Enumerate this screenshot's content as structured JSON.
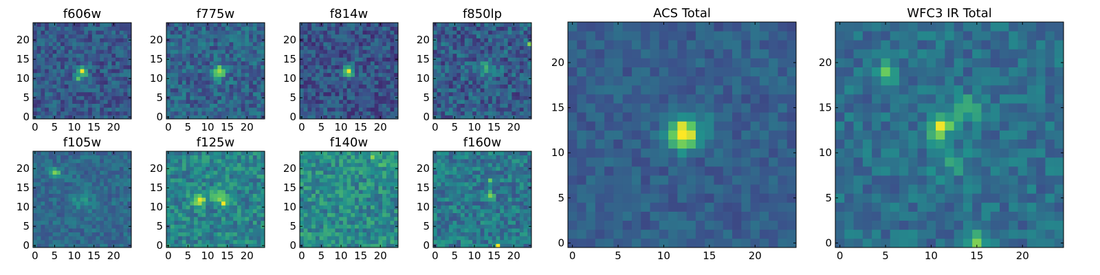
{
  "figure": {
    "colormap": "viridis",
    "colormap_stops": [
      "#440154",
      "#3b528b",
      "#21918c",
      "#5ec962",
      "#fde725"
    ],
    "frame_color": "#000000",
    "background": "#ffffff"
  },
  "chart_data": [
    {
      "type": "heatmap",
      "title": "f606w",
      "grid": false,
      "x_ticks": [
        0,
        5,
        10,
        15,
        20
      ],
      "y_ticks": [
        0,
        5,
        10,
        15,
        20
      ],
      "xlim": [
        -0.5,
        24.5
      ],
      "ylim": [
        -0.5,
        24.5
      ],
      "grid_size": 25,
      "background_level": 0.28,
      "noise": 0.13,
      "features": [
        {
          "x": 12,
          "y": 12,
          "amplitude": 0.72,
          "sigma": 0.9
        },
        {
          "x": 11,
          "y": 10,
          "amplitude": 0.35,
          "sigma": 0.7
        }
      ]
    },
    {
      "type": "heatmap",
      "title": "f775w",
      "grid": false,
      "x_ticks": [
        0,
        5,
        10,
        15,
        20
      ],
      "y_ticks": [
        0,
        5,
        10,
        15,
        20
      ],
      "xlim": [
        -0.5,
        24.5
      ],
      "ylim": [
        -0.5,
        24.5
      ],
      "grid_size": 25,
      "background_level": 0.32,
      "noise": 0.14,
      "features": [
        {
          "x": 13,
          "y": 12,
          "amplitude": 0.65,
          "sigma": 1.0
        },
        {
          "x": 12,
          "y": 10,
          "amplitude": 0.3,
          "sigma": 0.8
        }
      ]
    },
    {
      "type": "heatmap",
      "title": "f814w",
      "grid": false,
      "x_ticks": [
        0,
        5,
        10,
        15,
        20
      ],
      "y_ticks": [
        0,
        5,
        10,
        15,
        20
      ],
      "xlim": [
        -0.5,
        24.5
      ],
      "ylim": [
        -0.5,
        24.5
      ],
      "grid_size": 25,
      "background_level": 0.26,
      "noise": 0.14,
      "features": [
        {
          "x": 12,
          "y": 12,
          "amplitude": 0.7,
          "sigma": 0.9
        }
      ]
    },
    {
      "type": "heatmap",
      "title": "f850lp",
      "grid": false,
      "x_ticks": [
        0,
        5,
        10,
        15,
        20
      ],
      "y_ticks": [
        0,
        5,
        10,
        15,
        20
      ],
      "xlim": [
        -0.5,
        24.5
      ],
      "ylim": [
        -0.5,
        24.5
      ],
      "grid_size": 25,
      "background_level": 0.3,
      "noise": 0.16,
      "features": [
        {
          "x": 24,
          "y": 19,
          "amplitude": 0.65,
          "sigma": 0.5
        },
        {
          "x": 13,
          "y": 13,
          "amplitude": 0.2,
          "sigma": 1.5
        }
      ]
    },
    {
      "type": "heatmap",
      "title": "f105w",
      "grid": false,
      "x_ticks": [
        0,
        5,
        10,
        15,
        20
      ],
      "y_ticks": [
        0,
        5,
        10,
        15,
        20
      ],
      "xlim": [
        -0.5,
        24.5
      ],
      "ylim": [
        -0.5,
        24.5
      ],
      "grid_size": 25,
      "background_level": 0.34,
      "noise": 0.1,
      "features": [
        {
          "x": 5,
          "y": 19,
          "amplitude": 0.55,
          "sigma": 0.8
        },
        {
          "x": 12,
          "y": 12,
          "amplitude": 0.15,
          "sigma": 2.0
        }
      ]
    },
    {
      "type": "heatmap",
      "title": "f125w",
      "grid": false,
      "x_ticks": [
        0,
        5,
        10,
        15,
        20
      ],
      "y_ticks": [
        0,
        5,
        10,
        15,
        20
      ],
      "xlim": [
        -0.5,
        24.5
      ],
      "ylim": [
        -0.5,
        24.5
      ],
      "grid_size": 25,
      "background_level": 0.45,
      "noise": 0.15,
      "features": [
        {
          "x": 8,
          "y": 12,
          "amplitude": 0.4,
          "sigma": 1.2
        },
        {
          "x": 13,
          "y": 13,
          "amplitude": 0.35,
          "sigma": 1.2
        },
        {
          "x": 14,
          "y": 11,
          "amplitude": 0.35,
          "sigma": 0.6
        }
      ]
    },
    {
      "type": "heatmap",
      "title": "f140w",
      "grid": false,
      "x_ticks": [
        0,
        5,
        10,
        15,
        20
      ],
      "y_ticks": [
        0,
        5,
        10,
        15,
        20
      ],
      "xlim": [
        -0.5,
        24.5
      ],
      "ylim": [
        -0.5,
        24.5
      ],
      "grid_size": 25,
      "background_level": 0.48,
      "noise": 0.16,
      "features": [
        {
          "x": 18,
          "y": 23,
          "amplitude": 0.3,
          "sigma": 0.7
        },
        {
          "x": 20,
          "y": 21,
          "amplitude": 0.25,
          "sigma": 0.7
        }
      ]
    },
    {
      "type": "heatmap",
      "title": "f160w",
      "grid": false,
      "x_ticks": [
        0,
        5,
        10,
        15,
        20
      ],
      "y_ticks": [
        0,
        5,
        10,
        15,
        20
      ],
      "xlim": [
        -0.5,
        24.5
      ],
      "ylim": [
        -0.5,
        24.5
      ],
      "grid_size": 25,
      "background_level": 0.4,
      "noise": 0.15,
      "features": [
        {
          "x": 16,
          "y": 0,
          "amplitude": 0.7,
          "sigma": 0.5
        },
        {
          "x": 14,
          "y": 13,
          "amplitude": 0.3,
          "sigma": 0.8
        },
        {
          "x": 14,
          "y": 17,
          "amplitude": 0.3,
          "sigma": 0.6
        }
      ]
    },
    {
      "type": "heatmap",
      "title": "ACS Total",
      "grid": false,
      "x_ticks": [
        0,
        5,
        10,
        15,
        20
      ],
      "y_ticks": [
        0,
        5,
        10,
        15,
        20
      ],
      "xlim": [
        -0.5,
        24.5
      ],
      "ylim": [
        -0.5,
        24.5
      ],
      "grid_size": 25,
      "background_level": 0.3,
      "noise": 0.08,
      "features": [
        {
          "x": 12,
          "y": 12,
          "amplitude": 0.68,
          "sigma": 1.1
        },
        {
          "x": 13,
          "y": 13,
          "amplitude": 0.2,
          "sigma": 1.5
        }
      ]
    },
    {
      "type": "heatmap",
      "title": "WFC3 IR Total",
      "grid": false,
      "x_ticks": [
        0,
        5,
        10,
        15,
        20
      ],
      "y_ticks": [
        0,
        5,
        10,
        15,
        20
      ],
      "xlim": [
        -0.5,
        24.5
      ],
      "ylim": [
        -0.5,
        24.5
      ],
      "grid_size": 25,
      "background_level": 0.36,
      "noise": 0.11,
      "features": [
        {
          "x": 11,
          "y": 13,
          "amplitude": 0.55,
          "sigma": 1.0
        },
        {
          "x": 14,
          "y": 15,
          "amplitude": 0.3,
          "sigma": 1.0
        },
        {
          "x": 5,
          "y": 19,
          "amplitude": 0.35,
          "sigma": 0.8
        },
        {
          "x": 15,
          "y": 0,
          "amplitude": 0.4,
          "sigma": 0.8
        },
        {
          "x": 12,
          "y": 9,
          "amplitude": 0.2,
          "sigma": 1.2
        }
      ]
    }
  ]
}
